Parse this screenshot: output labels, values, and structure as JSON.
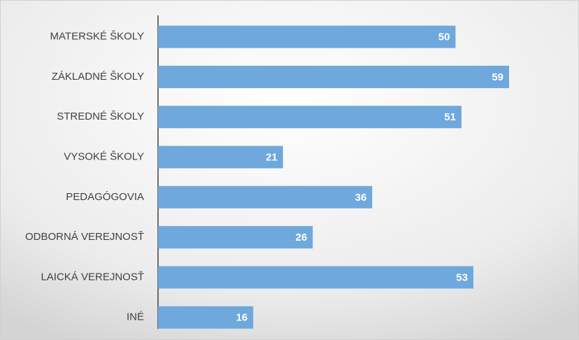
{
  "chart_data": {
    "type": "bar",
    "orientation": "horizontal",
    "categories": [
      "MATERSKÉ ŠKOLY",
      "ZÁKLADNÉ ŠKOLY",
      "STREDNÉ ŠKOLY",
      "VYSOKÉ ŠKOLY",
      "PEDAGÓGOVIA",
      "ODBORNÁ VEREJNOSŤ",
      "LAICKÁ VEREJNOSŤ",
      "INÉ"
    ],
    "values": [
      50,
      59,
      51,
      21,
      36,
      26,
      53,
      16
    ],
    "color": "#6fa8dc"
  }
}
